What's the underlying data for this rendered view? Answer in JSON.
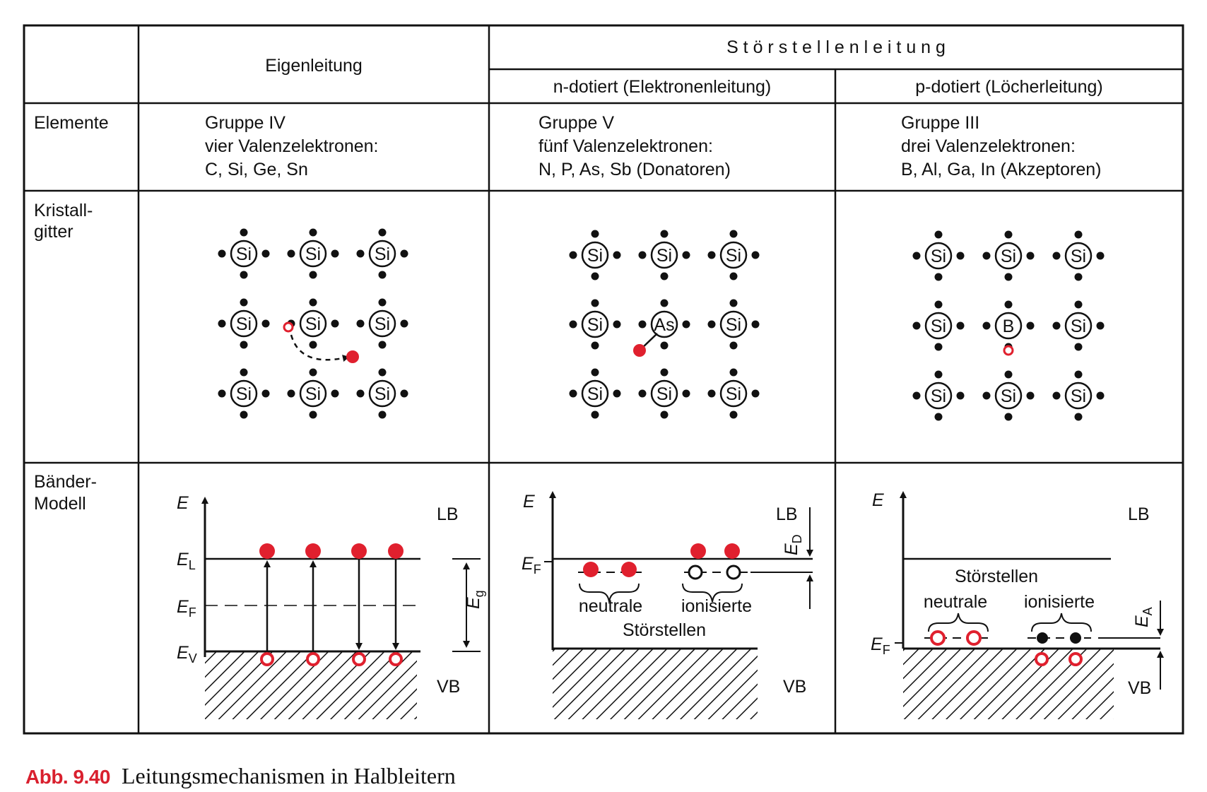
{
  "table": {
    "header": {
      "col_intrinsic": "Eigenleitung",
      "col_extrinsic": "S t ö r s t e l l e n l e i t u n g",
      "col_n": "n-dotiert (Elektronenleitung)",
      "col_p": "p-dotiert (Löcherleitung)"
    },
    "rows": {
      "elements_label": "Elemente",
      "lattice_label_1": "Kristall-",
      "lattice_label_2": "gitter",
      "band_label_1": "Bänder-",
      "band_label_2": "Modell"
    },
    "elements": {
      "intrinsic": [
        "Gruppe IV",
        "vier Valenzelektronen:",
        "C, Si, Ge, Sn"
      ],
      "n_doped": [
        "Gruppe V",
        "fünf Valenzelektronen:",
        "N, P, As, Sb (Donatoren)"
      ],
      "p_doped": [
        "Gruppe III",
        "drei Valenzelektronen:",
        "B, Al, Ga, In (Akzeptoren)"
      ]
    }
  },
  "lattice": {
    "host_atom": "Si",
    "n_dopant": "As",
    "p_dopant": "B"
  },
  "bands": {
    "energy_axis": "E",
    "conduction_band": "LB",
    "valence_band": "VB",
    "intrinsic": {
      "e_l": "E",
      "e_l_sub": "L",
      "e_f": "E",
      "e_f_sub": "F",
      "e_v": "E",
      "e_v_sub": "V",
      "gap": "E",
      "gap_sub": "g"
    },
    "n_doped": {
      "e_f": "E",
      "e_f_sub": "F",
      "donor": "E",
      "donor_sub": "D",
      "neutral": "neutrale",
      "ionized": "ionisierte",
      "impurities": "Störstellen"
    },
    "p_doped": {
      "e_f": "E",
      "e_f_sub": "F",
      "acceptor": "E",
      "acceptor_sub": "A",
      "impurities": "Störstellen",
      "neutral": "neutrale",
      "ionized": "ionisierte"
    }
  },
  "caption": {
    "label": "Abb. 9.40",
    "text": "Leitungsmechanismen in Halbleitern"
  },
  "colors": {
    "electron": "#e0202e",
    "hole_stroke": "#e0202e",
    "ink": "#111111"
  }
}
